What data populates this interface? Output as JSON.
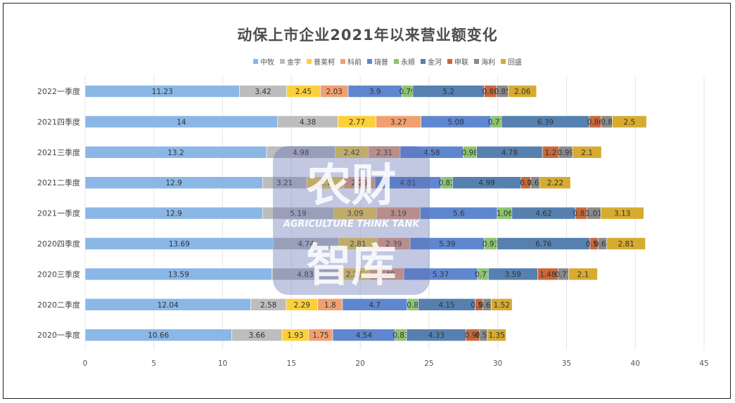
{
  "chart_data": {
    "type": "bar",
    "orientation": "horizontal",
    "stacked": true,
    "title": "动保上市企业2021年以来营业额变化",
    "categories": [
      "2022一季度",
      "2021四季度",
      "2021三季度",
      "2021二季度",
      "2021一季度",
      "2020四季度",
      "2020三季度",
      "2020二季度",
      "2020一季度"
    ],
    "xlim": [
      0,
      45
    ],
    "xticks": [
      0,
      5,
      10,
      15,
      20,
      25,
      30,
      35,
      40,
      45
    ],
    "legend_position": "top",
    "series": [
      {
        "name": "中牧",
        "color": "#8ab7e6",
        "values": [
          11.23,
          14,
          13.2,
          12.9,
          12.9,
          13.69,
          13.59,
          12.04,
          10.66
        ]
      },
      {
        "name": "金宇",
        "color": "#bdbdbd",
        "values": [
          3.42,
          4.38,
          4.98,
          3.21,
          5.19,
          4.74,
          4.83,
          2.58,
          3.66
        ]
      },
      {
        "name": "普莱柯",
        "color": "#fcd03a",
        "values": [
          2.45,
          2.77,
          2.42,
          2.7,
          3.09,
          2.81,
          2.26,
          2.29,
          1.93
        ]
      },
      {
        "name": "科前",
        "color": "#f0a070",
        "values": [
          2.03,
          3.27,
          2.31,
          2.26,
          3.19,
          2.39,
          2.49,
          1.8,
          1.75
        ]
      },
      {
        "name": "瑞普",
        "color": "#5f87cf",
        "values": [
          3.9,
          5.08,
          4.58,
          4.81,
          5.6,
          5.39,
          5.37,
          4.7,
          4.54
        ]
      },
      {
        "name": "永顺",
        "color": "#8cc46e",
        "values": [
          0.79,
          0.77,
          0.98,
          0.83,
          1.06,
          0.93,
          0.77,
          0.8,
          0.83
        ]
      },
      {
        "name": "金河",
        "color": "#5680b0",
        "values": [
          5.2,
          6.39,
          4.78,
          4.99,
          4.62,
          6.76,
          3.59,
          4.15,
          4.33
        ]
      },
      {
        "name": "申联",
        "color": "#c8683a",
        "values": [
          0.89,
          0.86,
          1.2,
          0.7,
          0.83,
          0.58,
          1.48,
          0.55,
          0.98
        ]
      },
      {
        "name": "海利",
        "color": "#8a8a8a",
        "values": [
          0.85,
          0.8,
          0.99,
          0.67,
          1.01,
          0.64,
          0.77,
          0.62,
          0.57
        ]
      },
      {
        "name": "回盛",
        "color": "#d6ab30",
        "values": [
          2.06,
          2.5,
          2.1,
          2.22,
          3.13,
          2.81,
          2.1,
          1.52,
          1.35
        ]
      }
    ]
  },
  "watermark": {
    "line1": "农财",
    "line2": "AGRICULTURE  THINK TANK",
    "line3": "智库"
  }
}
